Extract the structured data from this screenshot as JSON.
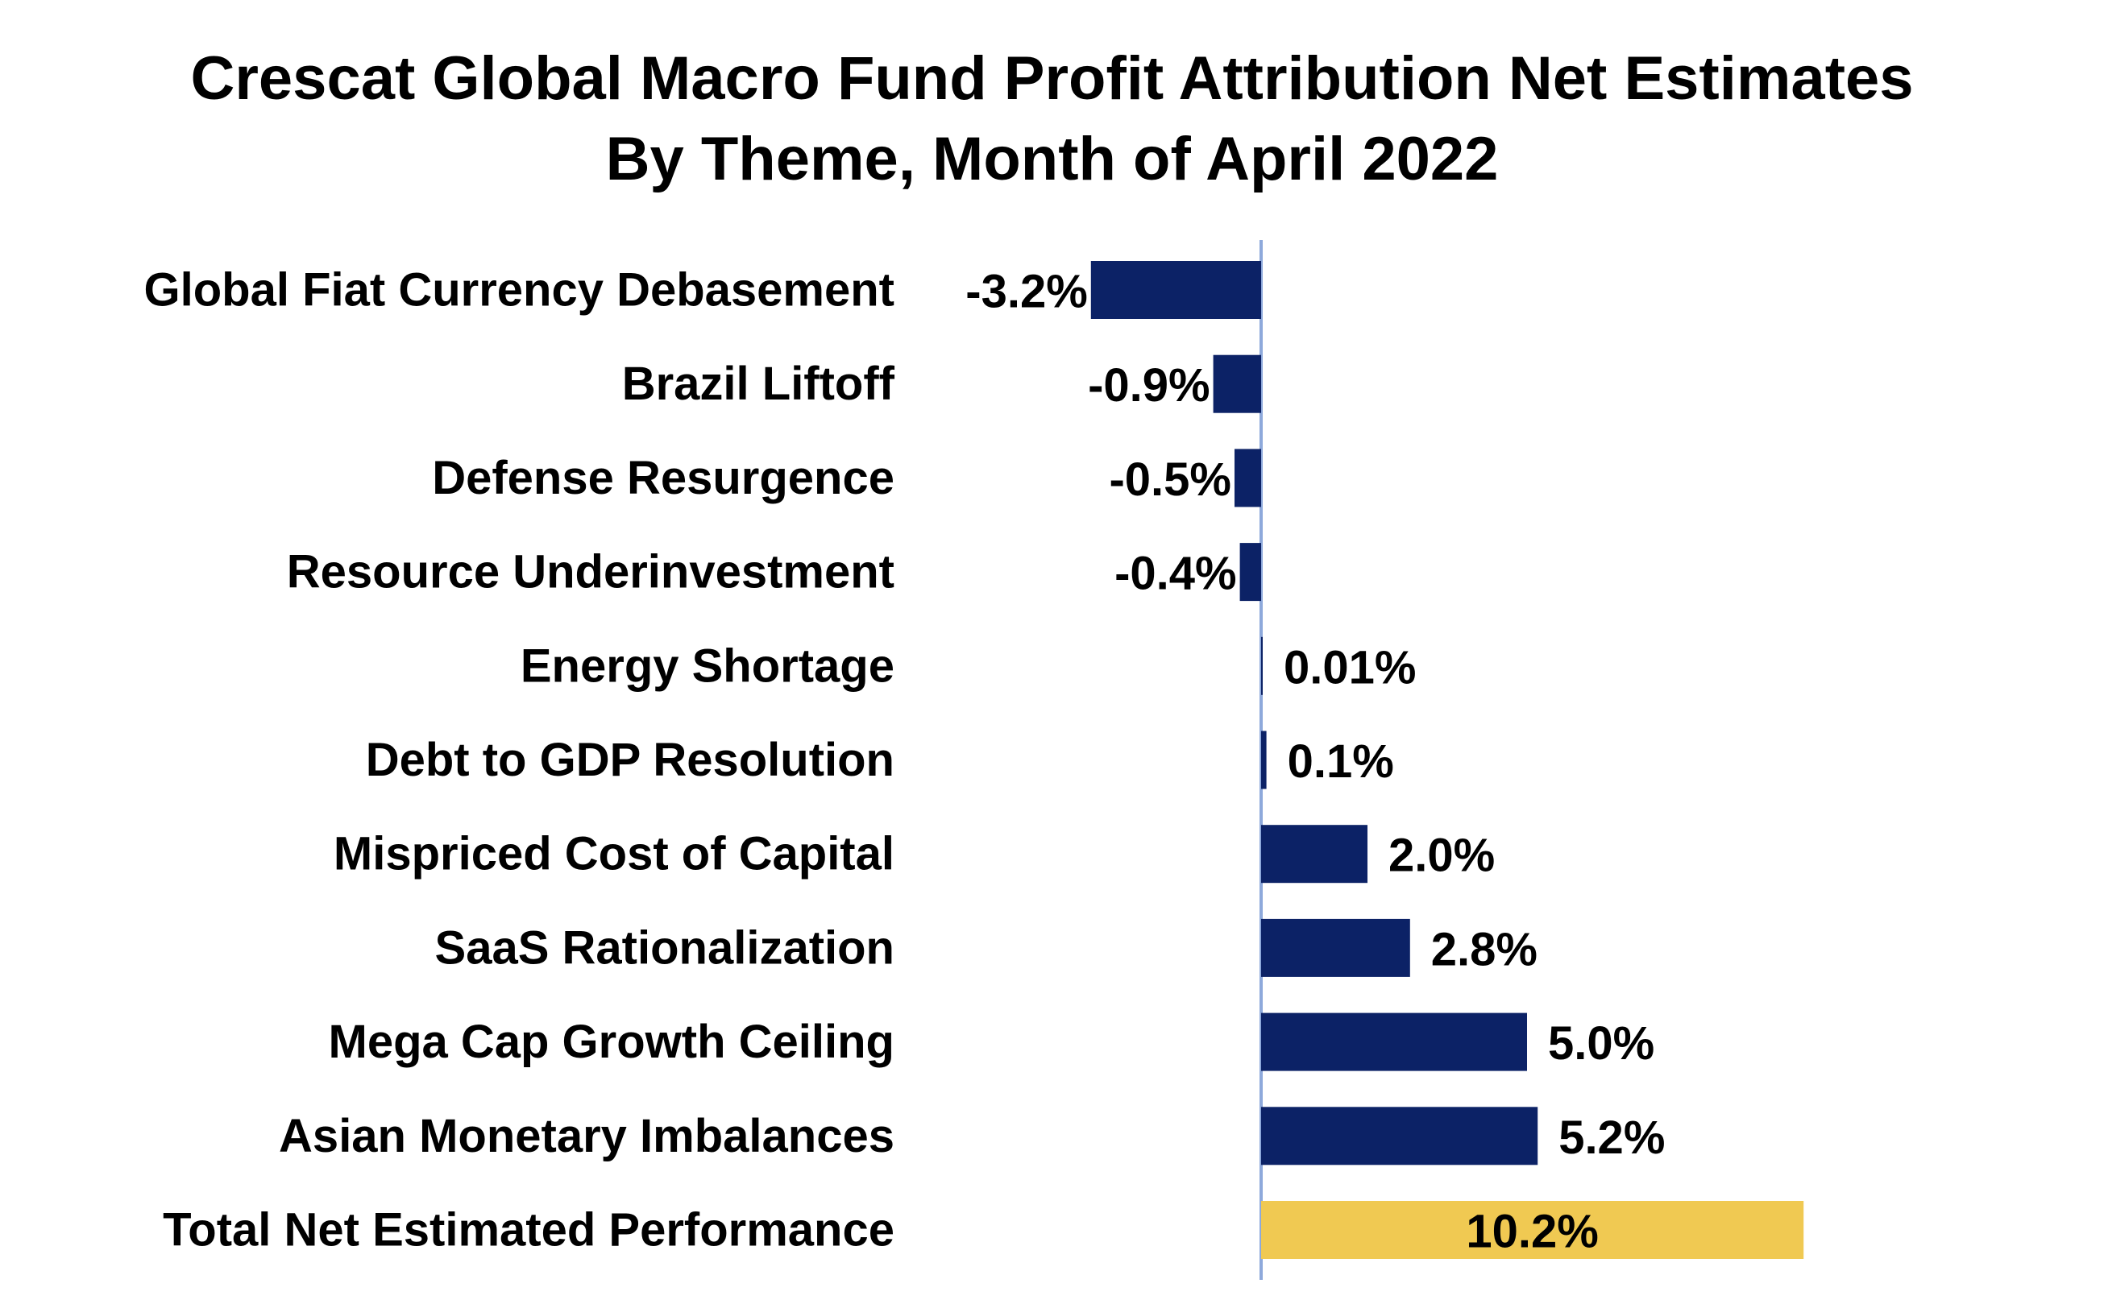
{
  "colors": {
    "negative_bar": "#0C2266",
    "positive_bar": "#0C2266",
    "total_bar": "#F0C952",
    "axis_line": "#8EA9DB",
    "text": "#000000"
  },
  "chart_data": {
    "type": "bar",
    "orientation": "horizontal",
    "title": "Crescat Global Macro Fund Profit Attribution Net Estimates",
    "subtitle": "By Theme, Month of April 2022",
    "xlabel": "",
    "ylabel": "",
    "unit": "%",
    "grid": false,
    "legend": "none",
    "xlim": [
      -3.2,
      10.2
    ],
    "categories": [
      "Global Fiat Currency Debasement",
      "Brazil Liftoff",
      "Defense Resurgence",
      "Resource Underinvestment",
      "Energy Shortage",
      "Debt to GDP Resolution ",
      "Mispriced Cost of Capital",
      "SaaS Rationalization",
      "Mega Cap Growth Ceiling",
      "Asian Monetary Imbalances",
      "Total Net Estimated Performance"
    ],
    "values": [
      -3.2,
      -0.9,
      -0.5,
      -0.4,
      0.01,
      0.1,
      2.0,
      2.8,
      5.0,
      5.2,
      10.2
    ],
    "data_labels": [
      "-3.2%",
      "-0.9%",
      "-0.5%",
      "-0.4%",
      "0.01%",
      "0.1%",
      "2.0%",
      "2.8%",
      "5.0%",
      "5.2%",
      "10.2%"
    ],
    "highlight_last": true
  }
}
